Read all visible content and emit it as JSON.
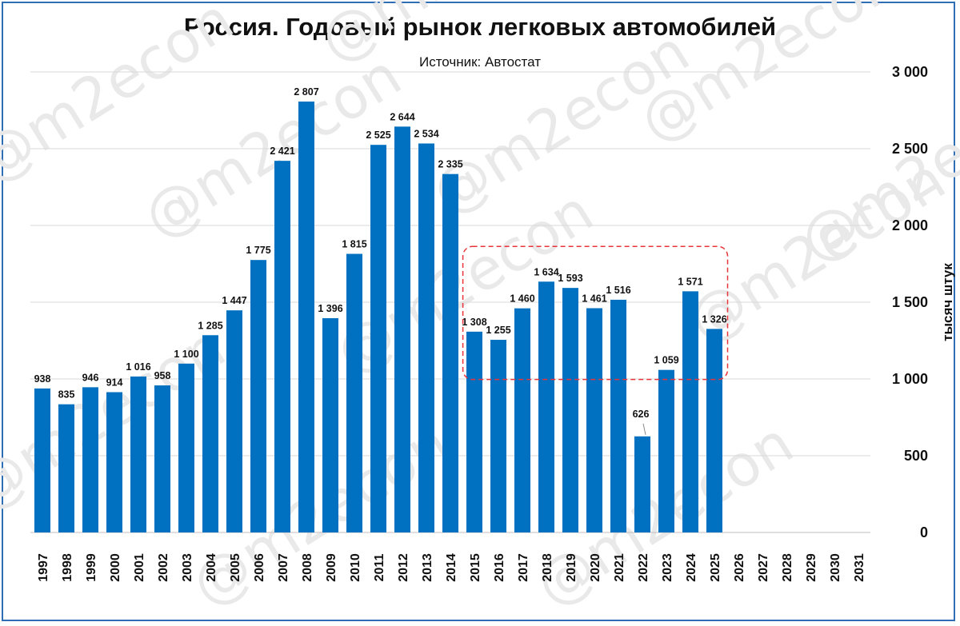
{
  "chart_data": {
    "type": "bar",
    "title": "Россия. Годовый рынок легковых автомобилей",
    "subtitle": "Источник: Автостат",
    "ylabel": "тысяч штук",
    "xlabel": "",
    "categories": [
      "1997",
      "1998",
      "1999",
      "2000",
      "2001",
      "2002",
      "2003",
      "2004",
      "2005",
      "2006",
      "2007",
      "2008",
      "2009",
      "2010",
      "2011",
      "2012",
      "2013",
      "2014",
      "2015",
      "2016",
      "2017",
      "2018",
      "2019",
      "2020",
      "2021",
      "2022",
      "2023",
      "2024",
      "2025",
      "2026",
      "2027",
      "2028",
      "2029",
      "2030",
      "2031"
    ],
    "values": [
      938,
      835,
      946,
      914,
      1016,
      958,
      1100,
      1285,
      1447,
      1775,
      2421,
      2807,
      1396,
      1815,
      2525,
      2644,
      2534,
      2335,
      1308,
      1255,
      1460,
      1634,
      1593,
      1461,
      1516,
      626,
      1059,
      1571,
      1326,
      null,
      null,
      null,
      null,
      null,
      null
    ],
    "value_labels": [
      "938",
      "835",
      "946",
      "914",
      "1 016",
      "958",
      "1 100",
      "1 285",
      "1 447",
      "1 775",
      "2 421",
      "2 807",
      "1 396",
      "1 815",
      "2 525",
      "2 644",
      "2 534",
      "2 335",
      "1 308",
      "1 255",
      "1 460",
      "1 634",
      "1 593",
      "1 461",
      "1 516",
      "626",
      "1 059",
      "1 571",
      "1 326",
      "",
      "",
      "",
      "",
      "",
      ""
    ],
    "ylim": [
      0,
      3000
    ],
    "yticks": [
      0,
      500,
      1000,
      1500,
      2000,
      2500,
      3000
    ],
    "ytick_labels": [
      "0",
      "500",
      "1 000",
      "1 500",
      "2 000",
      "2 500",
      "3 000"
    ],
    "yaxis_side": "right",
    "grid": true,
    "legend": "none",
    "bar_color": "#0070c0",
    "highlight": {
      "from": "2015",
      "to": "2025",
      "style": "dashed red rounded box",
      "color": "#e8343a"
    },
    "watermark": "@m2econ"
  }
}
